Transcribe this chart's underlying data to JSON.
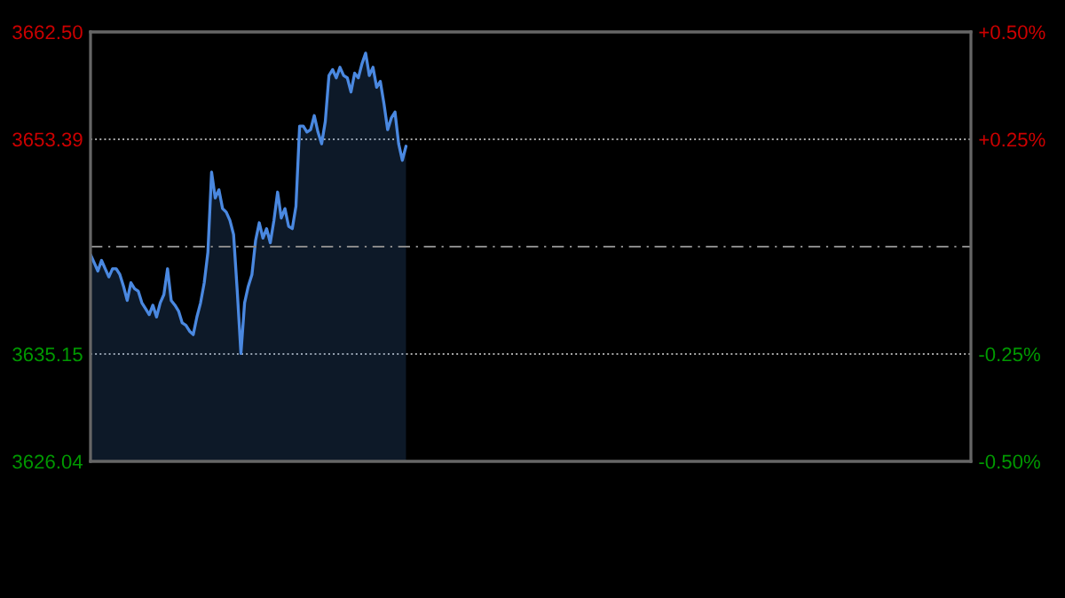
{
  "chart_data": {
    "type": "area",
    "categories": [
      null,
      null,
      null,
      null,
      null,
      null,
      null,
      null,
      null,
      null,
      null,
      null,
      null,
      null,
      null,
      null,
      null,
      null,
      null,
      null,
      null,
      null,
      null,
      null,
      null,
      null,
      null,
      null,
      null,
      null,
      null,
      null,
      null,
      null,
      null,
      null,
      null,
      null,
      null,
      null,
      null,
      null,
      null,
      null,
      null,
      null,
      null,
      null,
      null,
      null,
      null,
      null,
      null,
      null,
      null,
      null,
      null,
      null,
      null,
      null,
      null,
      null,
      null,
      null,
      null,
      null,
      null,
      null,
      null,
      null,
      null,
      null,
      null,
      null,
      null,
      null,
      null,
      null,
      null,
      null,
      null,
      null,
      null,
      null,
      null,
      null,
      null,
      null,
      null,
      null,
      null,
      null,
      null,
      null,
      null,
      null,
      null,
      null,
      null,
      null,
      null,
      null,
      null,
      null,
      null,
      null,
      null,
      null,
      null,
      null,
      null,
      null,
      null,
      null,
      null,
      null,
      null,
      null,
      null,
      null,
      null,
      null,
      null,
      null,
      null,
      null,
      null,
      null,
      null,
      null,
      null,
      null,
      null,
      null,
      null,
      null,
      null,
      null,
      null,
      null,
      null,
      null,
      null,
      null,
      null,
      null,
      null,
      null,
      null,
      null,
      null,
      null,
      null,
      null,
      null,
      null,
      null,
      null,
      null,
      null,
      null,
      null,
      null,
      null,
      null,
      null,
      null,
      null,
      null,
      null,
      null,
      null,
      null,
      null,
      null,
      null,
      null,
      null,
      null,
      null,
      null,
      null,
      null,
      null,
      null,
      null,
      null,
      null,
      null,
      null,
      null,
      null,
      null,
      null,
      null,
      null,
      null,
      null,
      null,
      null,
      null,
      null,
      null,
      null,
      null,
      null,
      null,
      null,
      null,
      null,
      null,
      null,
      null,
      null,
      null,
      null,
      null,
      null,
      null,
      null,
      null,
      null,
      null,
      null,
      null,
      null,
      null,
      null,
      null,
      null,
      null,
      null,
      null,
      null,
      null,
      null,
      null,
      null,
      null,
      null,
      null
    ],
    "series": [
      {
        "color": "#4a88e0",
        "values": [
          3643.6,
          3642.9,
          3642.2,
          3643.1,
          3642.4,
          3641.7,
          3642.4,
          3642.4,
          3641.9,
          3640.9,
          3639.7,
          3641.2,
          3640.7,
          3640.5,
          3639.5,
          3639.0,
          3638.5,
          3639.3,
          3638.3,
          3639.5,
          3640.2,
          3642.4,
          3639.7,
          3639.3,
          3638.8,
          3637.8,
          3637.6,
          3637.1,
          3636.8,
          3638.3,
          3639.5,
          3641.2,
          3643.8,
          3650.6,
          3648.4,
          3649.1,
          3647.5,
          3647.2,
          3646.5,
          3645.3,
          3640.5,
          3635.2,
          3639.5,
          3640.9,
          3641.9,
          3644.8,
          3646.3,
          3645.0,
          3645.8,
          3644.6,
          3646.5,
          3648.9,
          3646.7,
          3647.5,
          3646.0,
          3645.8,
          3647.7,
          3654.5,
          3654.5,
          3654.0,
          3654.2,
          3655.4,
          3654.0,
          3653.0,
          3654.9,
          3658.8,
          3659.3,
          3658.6,
          3659.5,
          3658.8,
          3658.6,
          3657.4,
          3659.0,
          3658.6,
          3659.8,
          3660.7,
          3658.8,
          3659.5,
          3657.8,
          3658.3,
          3656.4,
          3654.2,
          3655.2,
          3655.7,
          3653.0,
          3651.6,
          3652.8,
          null,
          null,
          null,
          null,
          null,
          null,
          null,
          null,
          null,
          null,
          null,
          null,
          null,
          null,
          null,
          null,
          null,
          null,
          null,
          null,
          null,
          null,
          null,
          null,
          null,
          null,
          null,
          null,
          null,
          null,
          null,
          null,
          null,
          null,
          null,
          null,
          null,
          null,
          null,
          null,
          null,
          null,
          null,
          null,
          null,
          null,
          null,
          null,
          null,
          null,
          null,
          null,
          null,
          null,
          null,
          null,
          null,
          null,
          null,
          null,
          null,
          null,
          null,
          null,
          null,
          null,
          null,
          null,
          null,
          null,
          null,
          null,
          null,
          null,
          null,
          null,
          null,
          null,
          null,
          null,
          null,
          null,
          null,
          null,
          null,
          null,
          null,
          null,
          null,
          null,
          null,
          null,
          null,
          null,
          null,
          null,
          null,
          null,
          null,
          null,
          null,
          null,
          null,
          null,
          null,
          null,
          null,
          null,
          null,
          null,
          null,
          null,
          null,
          null,
          null,
          null,
          null,
          null,
          null,
          null,
          null,
          null,
          null,
          null,
          null,
          null,
          null,
          null,
          null,
          null,
          null,
          null,
          null,
          null,
          null,
          null,
          null,
          null,
          null,
          null,
          null,
          null,
          null,
          null,
          null,
          null,
          null,
          null,
          null,
          null,
          null,
          null,
          null,
          null
        ]
      }
    ],
    "ylim": [
      3626.04,
      3662.5
    ],
    "yticks": [
      3626.04,
      3635.15,
      3653.39,
      {
        "value": 3662.5,
        "label": "3662.50"
      }
    ],
    "y2lim": [
      -0.5,
      0.5
    ],
    "y2ticks": [
      {
        "value": -0.5,
        "label": "-0.50%"
      },
      {
        "value": -0.25,
        "label": "-0.25%"
      },
      {
        "value": 0.25,
        "label": "+0.25%"
      },
      {
        "value": 0.5,
        "label": "+0.50%"
      }
    ],
    "ref_lines": [
      {
        "axis": "y",
        "value": 3644.27,
        "color": "#888888",
        "line_style": "dashed"
      }
    ],
    "grid": "y",
    "legend": false,
    "marker": "none",
    "line_style": "solid"
  }
}
